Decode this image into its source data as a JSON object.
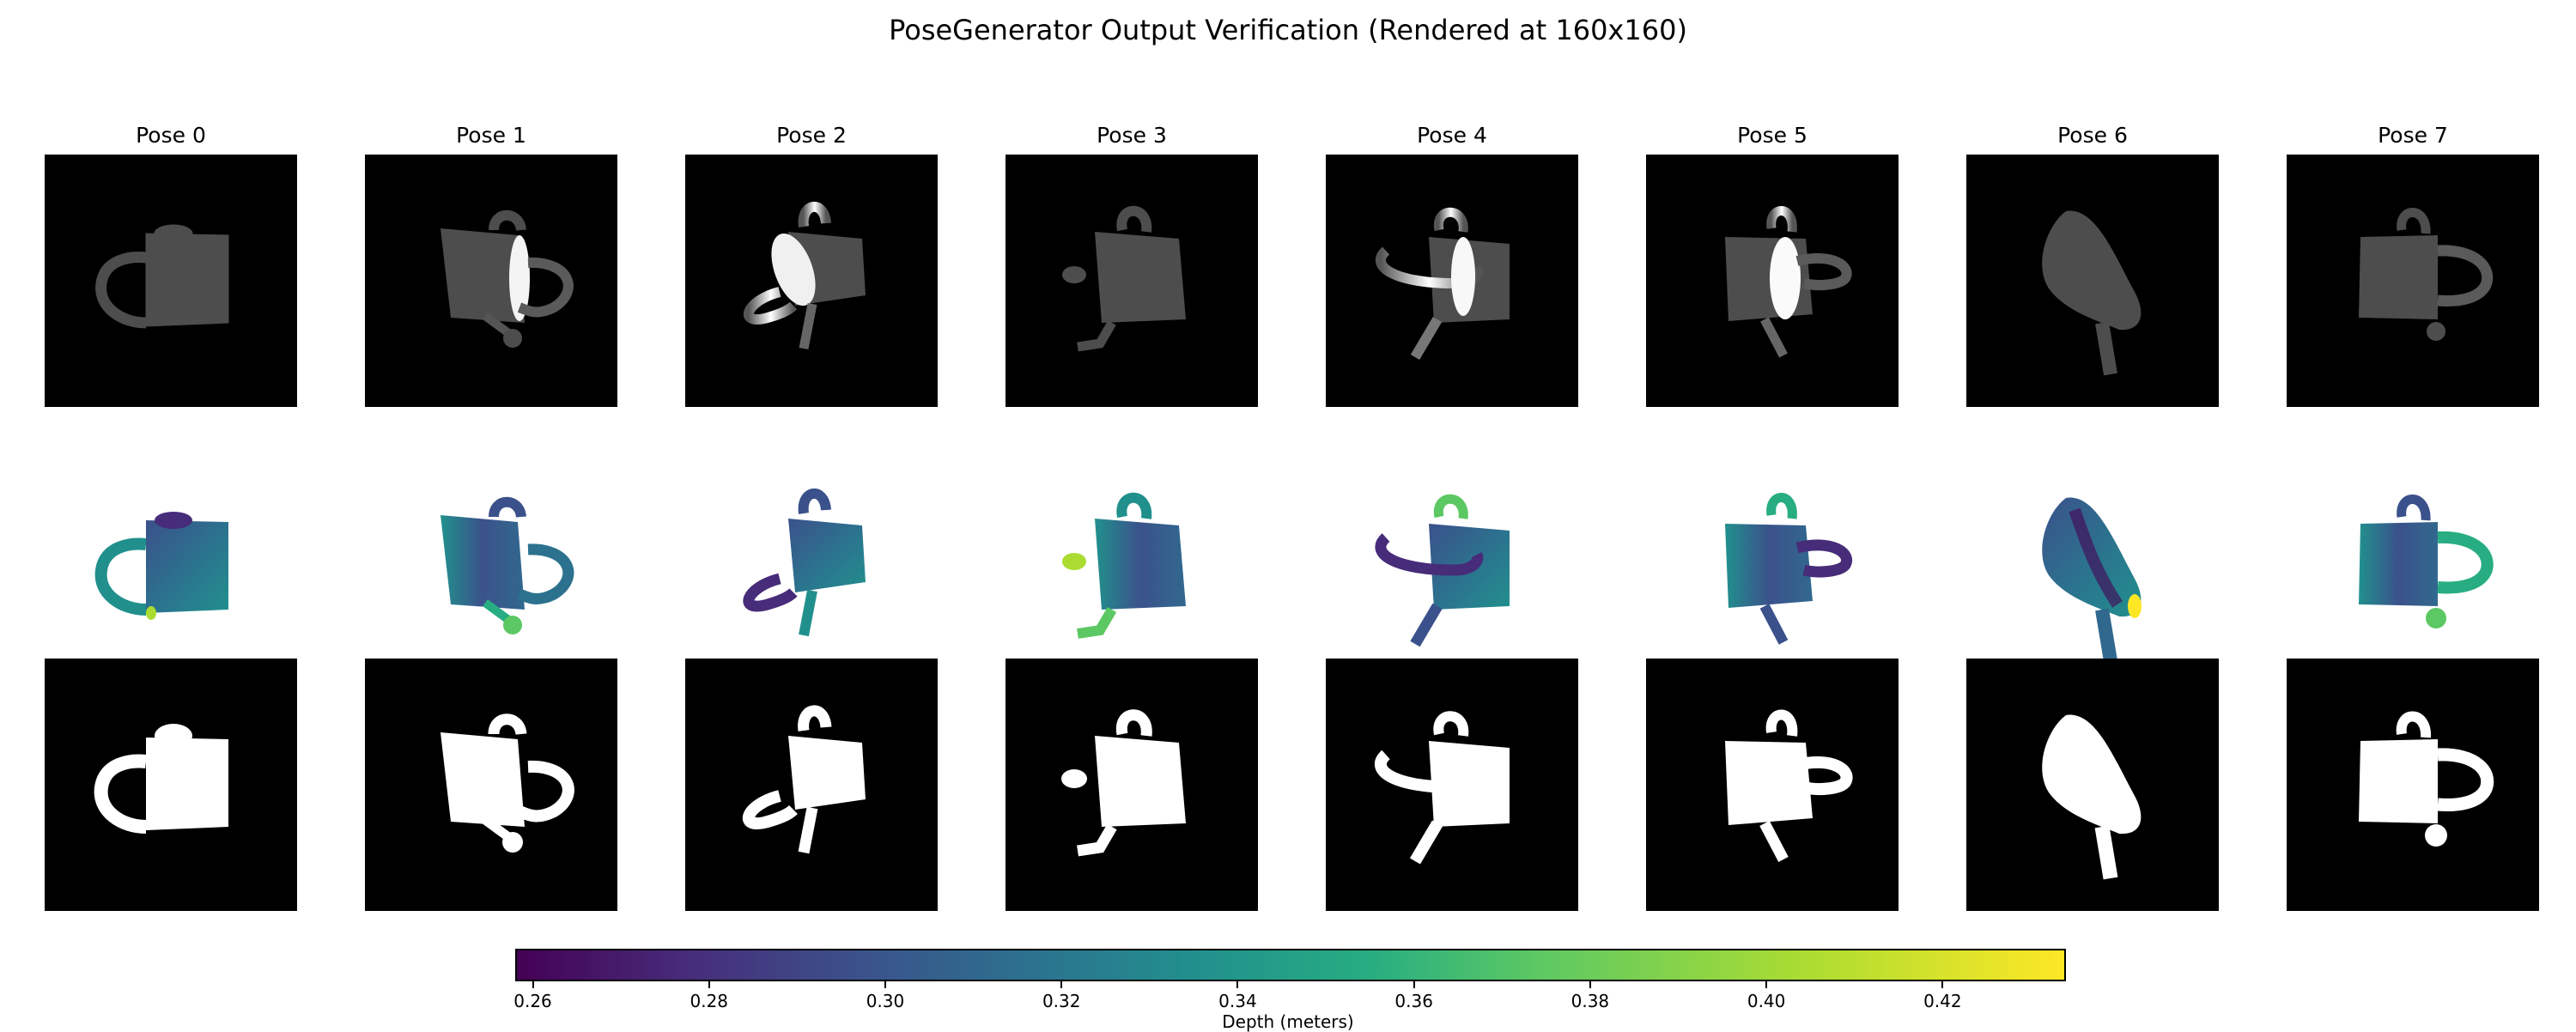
{
  "title": "PoseGenerator Output Verification (Rendered at 160x160)",
  "poses": [
    "Pose 0",
    "Pose 1",
    "Pose 2",
    "Pose 3",
    "Pose 4",
    "Pose 5",
    "Pose 6",
    "Pose 7"
  ],
  "rows": [
    "shaded-render",
    "depth-map",
    "silhouette-mask"
  ],
  "colorbar": {
    "label": "Depth (meters)",
    "colormap": "viridis",
    "range": [
      0.258,
      0.434
    ],
    "ticks": [
      "0.26",
      "0.28",
      "0.30",
      "0.32",
      "0.34",
      "0.36",
      "0.38",
      "0.40",
      "0.42"
    ]
  },
  "colors": {
    "background": "#000000",
    "shaded": "#4d4d4d",
    "mask": "#ffffff"
  }
}
